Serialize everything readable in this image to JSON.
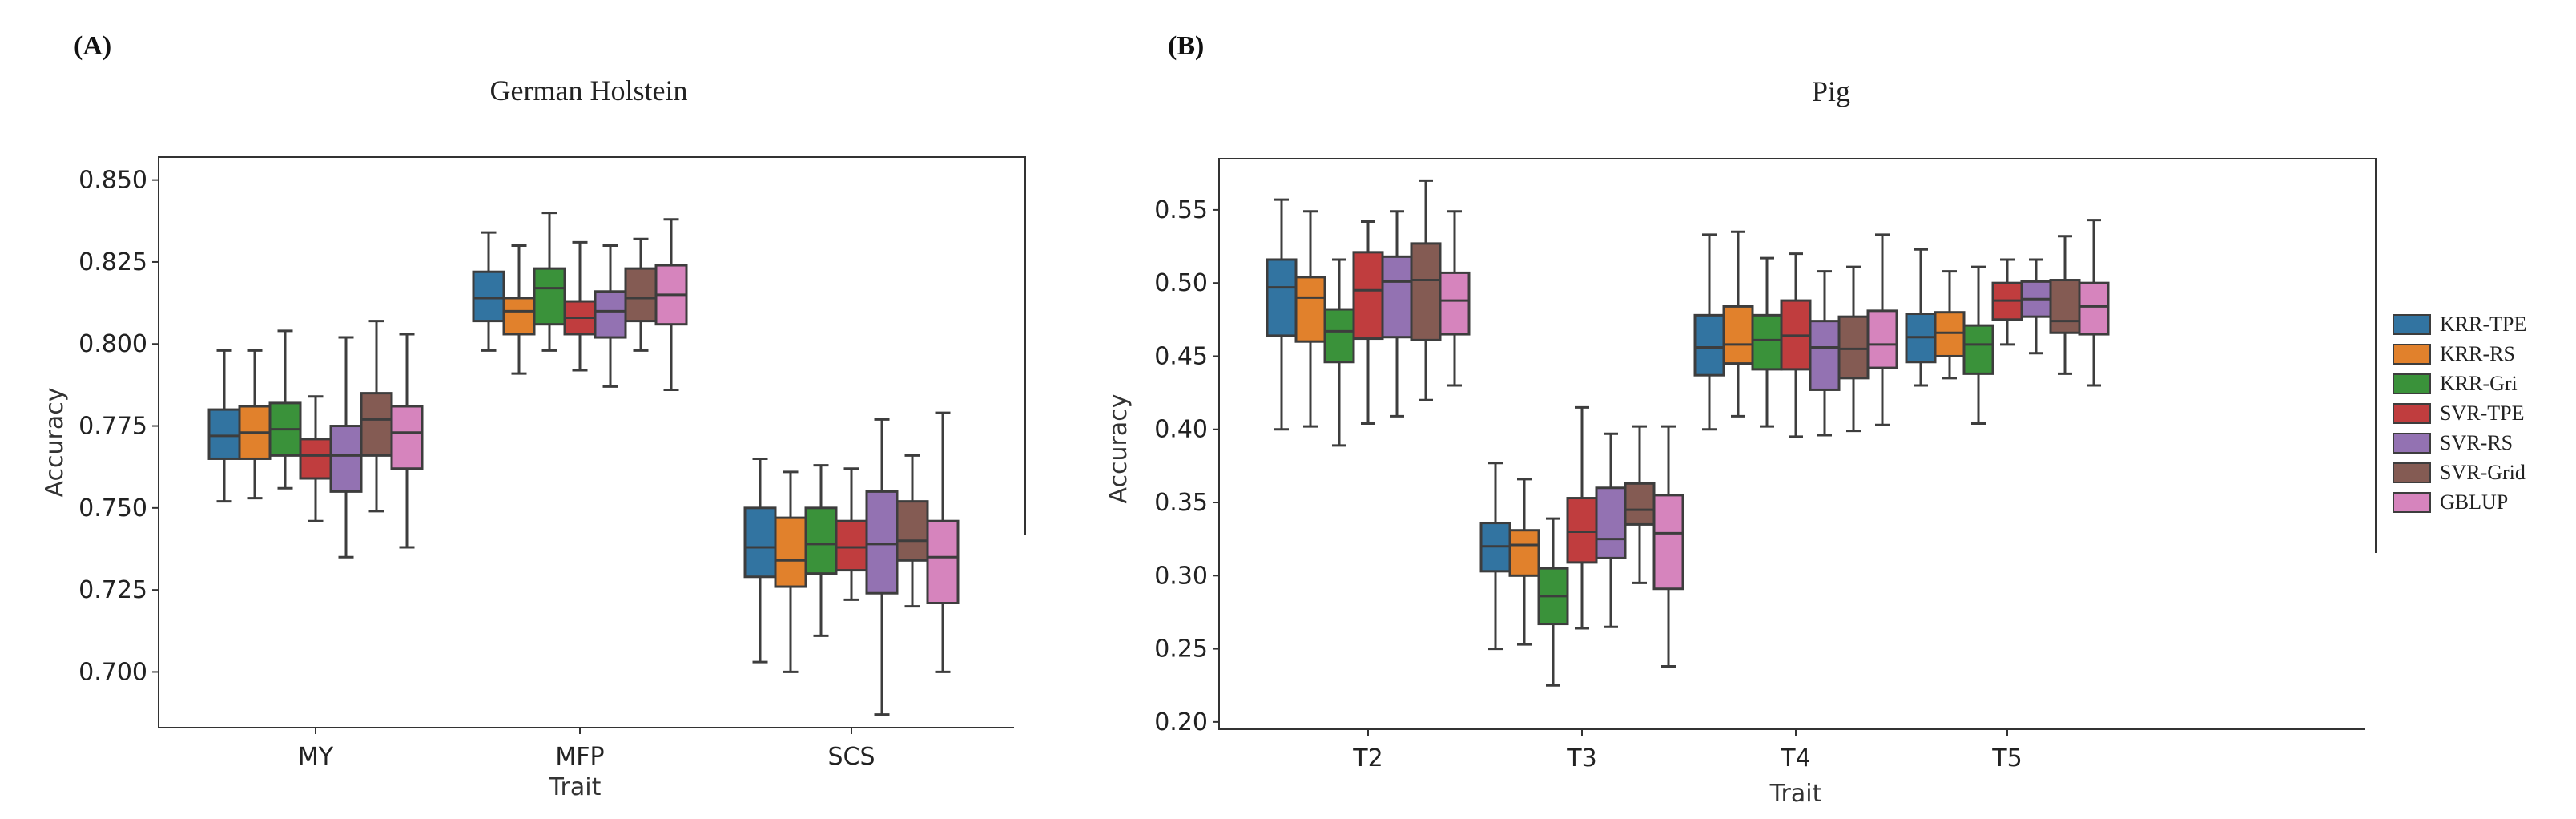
{
  "chart_data": [
    {
      "type": "box",
      "panel_label": "(A)",
      "title": "German Holstein",
      "xlabel": "Trait",
      "ylabel": "Accuracy",
      "ylim": [
        0.683,
        0.857
      ],
      "yticks": [
        "0.700",
        "0.725",
        "0.750",
        "0.775",
        "0.800",
        "0.825",
        "0.850"
      ],
      "grid": false,
      "legend": "none",
      "categories": [
        "MY",
        "MFP",
        "SCS"
      ],
      "series": [
        {
          "name": "KRR-TPE",
          "boxes": [
            [
              0.752,
              0.765,
              0.772,
              0.78,
              0.798
            ],
            [
              0.798,
              0.807,
              0.814,
              0.822,
              0.834
            ],
            [
              0.703,
              0.729,
              0.738,
              0.75,
              0.765
            ]
          ]
        },
        {
          "name": "KRR-RS",
          "boxes": [
            [
              0.753,
              0.765,
              0.773,
              0.781,
              0.798
            ],
            [
              0.791,
              0.803,
              0.81,
              0.814,
              0.83
            ],
            [
              0.7,
              0.726,
              0.734,
              0.747,
              0.761
            ]
          ]
        },
        {
          "name": "KRR-Gri",
          "boxes": [
            [
              0.756,
              0.766,
              0.774,
              0.782,
              0.804
            ],
            [
              0.798,
              0.806,
              0.817,
              0.823,
              0.84
            ],
            [
              0.711,
              0.73,
              0.739,
              0.75,
              0.763
            ]
          ]
        },
        {
          "name": "SVR-TPE",
          "boxes": [
            [
              0.746,
              0.759,
              0.766,
              0.771,
              0.784
            ],
            [
              0.792,
              0.803,
              0.808,
              0.813,
              0.831
            ],
            [
              0.722,
              0.731,
              0.738,
              0.746,
              0.762
            ]
          ]
        },
        {
          "name": "SVR-RS",
          "boxes": [
            [
              0.735,
              0.755,
              0.766,
              0.775,
              0.802
            ],
            [
              0.787,
              0.802,
              0.81,
              0.816,
              0.83
            ],
            [
              0.687,
              0.724,
              0.739,
              0.755,
              0.777
            ]
          ]
        },
        {
          "name": "SVR-Grid",
          "boxes": [
            [
              0.749,
              0.766,
              0.777,
              0.785,
              0.807
            ],
            [
              0.798,
              0.807,
              0.814,
              0.823,
              0.832
            ],
            [
              0.72,
              0.734,
              0.74,
              0.752,
              0.766
            ]
          ]
        },
        {
          "name": "GBLUP",
          "boxes": [
            [
              0.738,
              0.762,
              0.773,
              0.781,
              0.803
            ],
            [
              0.786,
              0.806,
              0.815,
              0.824,
              0.838
            ],
            [
              0.7,
              0.721,
              0.735,
              0.746,
              0.779
            ]
          ]
        }
      ]
    },
    {
      "type": "box",
      "panel_label": "(B)",
      "title": "Pig",
      "xlabel": "Trait",
      "ylabel": "Accuracy",
      "ylim": [
        0.195,
        0.585
      ],
      "yticks": [
        "0.20",
        "0.25",
        "0.30",
        "0.35",
        "0.40",
        "0.45",
        "0.50",
        "0.55"
      ],
      "grid": false,
      "legend": "right",
      "categories": [
        "T2",
        "T3",
        "T4",
        "T5"
      ],
      "series": [
        {
          "name": "KRR-TPE",
          "boxes": [
            [
              0.4,
              0.464,
              0.497,
              0.516,
              0.557
            ],
            [
              0.25,
              0.303,
              0.32,
              0.336,
              0.377
            ],
            [
              0.4,
              0.437,
              0.456,
              0.478,
              0.533
            ],
            [
              0.43,
              0.446,
              0.463,
              0.479,
              0.523
            ]
          ]
        },
        {
          "name": "KRR-RS",
          "boxes": [
            [
              0.402,
              0.46,
              0.49,
              0.504,
              0.549
            ],
            [
              0.253,
              0.3,
              0.321,
              0.331,
              0.366
            ],
            [
              0.409,
              0.445,
              0.458,
              0.484,
              0.535
            ],
            [
              0.435,
              0.45,
              0.466,
              0.48,
              0.508
            ]
          ]
        },
        {
          "name": "KRR-Gri",
          "boxes": [
            [
              0.389,
              0.446,
              0.467,
              0.482,
              0.516
            ],
            [
              0.225,
              0.267,
              0.286,
              0.305,
              0.339
            ],
            [
              0.402,
              0.441,
              0.461,
              0.478,
              0.517
            ],
            [
              0.404,
              0.438,
              0.458,
              0.471,
              0.511
            ]
          ]
        },
        {
          "name": "SVR-TPE",
          "boxes": [
            [
              0.404,
              0.462,
              0.495,
              0.521,
              0.542
            ],
            [
              0.264,
              0.309,
              0.33,
              0.353,
              0.415
            ],
            [
              0.395,
              0.441,
              0.464,
              0.488,
              0.52
            ],
            [
              0.458,
              0.475,
              0.488,
              0.5,
              0.516
            ]
          ]
        },
        {
          "name": "SVR-RS",
          "boxes": [
            [
              0.409,
              0.463,
              0.501,
              0.518,
              0.549
            ],
            [
              0.265,
              0.312,
              0.325,
              0.36,
              0.397
            ],
            [
              0.396,
              0.427,
              0.456,
              0.474,
              0.508
            ],
            [
              0.452,
              0.477,
              0.489,
              0.501,
              0.516
            ]
          ]
        },
        {
          "name": "SVR-Grid",
          "boxes": [
            [
              0.42,
              0.461,
              0.502,
              0.527,
              0.57
            ],
            [
              0.295,
              0.335,
              0.345,
              0.363,
              0.402
            ],
            [
              0.399,
              0.435,
              0.455,
              0.477,
              0.511
            ],
            [
              0.438,
              0.466,
              0.474,
              0.502,
              0.532
            ]
          ]
        },
        {
          "name": "GBLUP",
          "boxes": [
            [
              0.43,
              0.465,
              0.488,
              0.507,
              0.549
            ],
            [
              0.238,
              0.291,
              0.329,
              0.355,
              0.402
            ],
            [
              0.403,
              0.442,
              0.458,
              0.481,
              0.533
            ],
            [
              0.43,
              0.465,
              0.484,
              0.5,
              0.543
            ]
          ]
        }
      ]
    }
  ],
  "colors": {
    "KRR-TPE": "#3274a1",
    "KRR-RS": "#e1812c",
    "KRR-Gri": "#3a923a",
    "SVR-TPE": "#c03d3e",
    "SVR-RS": "#9372b2",
    "SVR-Grid": "#845b53",
    "GBLUP": "#d684bd",
    "line": "#3d3d3d",
    "axis": "#333333",
    "text": "#222222"
  }
}
